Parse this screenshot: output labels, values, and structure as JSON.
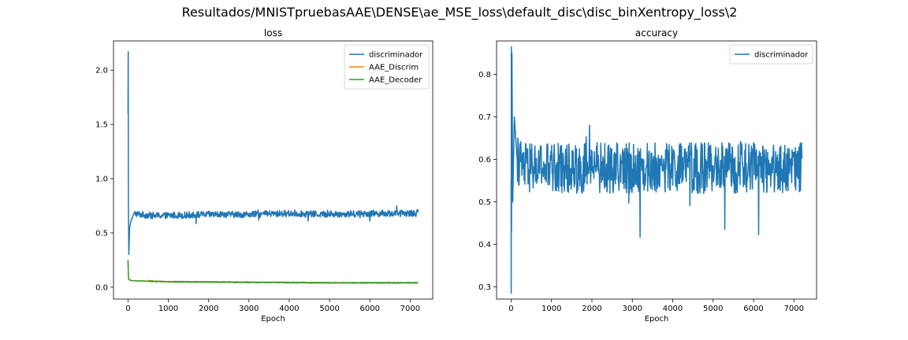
{
  "figure": {
    "suptitle": "Resultados/MNISTpruebasAAE\\DENSE\\ae_MSE_loss\\default_disc\\disc_binXentropy_loss\\2"
  },
  "chart_data": [
    {
      "type": "line",
      "title": "loss",
      "xlabel": "Epoch",
      "ylabel": "",
      "xlim": [
        -360,
        7560
      ],
      "ylim": [
        -0.11,
        2.27
      ],
      "xticks": [
        0,
        1000,
        2000,
        3000,
        4000,
        5000,
        6000,
        7000
      ],
      "xtick_labels": [
        "0",
        "1000",
        "2000",
        "3000",
        "4000",
        "5000",
        "6000",
        "7000"
      ],
      "yticks": [
        0.0,
        0.5,
        1.0,
        1.5,
        2.0
      ],
      "ytick_labels": [
        "0.0",
        "0.5",
        "1.0",
        "1.5",
        "2.0"
      ],
      "grid": false,
      "legend_position": "top-right",
      "series": [
        {
          "name": "discriminador",
          "color": "#1f77b4",
          "x": [
            0,
            5,
            10,
            20,
            40,
            80,
            150,
            300,
            600,
            1000,
            2000,
            3000,
            4000,
            5000,
            6000,
            7200
          ],
          "y": [
            1.6,
            2.17,
            0.75,
            0.3,
            0.55,
            0.62,
            0.68,
            0.67,
            0.66,
            0.66,
            0.67,
            0.67,
            0.68,
            0.67,
            0.68,
            0.68
          ],
          "noise_amplitude": 0.03
        },
        {
          "name": "AAE_Discrim",
          "color": "#ff7f0e",
          "x": [
            0,
            10,
            20,
            50,
            100,
            500,
            1000,
            3000,
            5000,
            7200
          ],
          "y": [
            0.25,
            0.1,
            0.07,
            0.065,
            0.06,
            0.055,
            0.05,
            0.045,
            0.04,
            0.04
          ],
          "noise_amplitude": 0.004
        },
        {
          "name": "AAE_Decoder",
          "color": "#2ca02c",
          "x": [
            0,
            10,
            20,
            50,
            100,
            500,
            1000,
            3000,
            5000,
            7200
          ],
          "y": [
            0.25,
            0.1,
            0.07,
            0.065,
            0.06,
            0.055,
            0.05,
            0.045,
            0.04,
            0.04
          ],
          "noise_amplitude": 0.004
        }
      ]
    },
    {
      "type": "line",
      "title": "accuracy",
      "xlabel": "Epoch",
      "ylabel": "",
      "xlim": [
        -360,
        7560
      ],
      "ylim": [
        0.271,
        0.879
      ],
      "xticks": [
        0,
        1000,
        2000,
        3000,
        4000,
        5000,
        6000,
        7000
      ],
      "xtick_labels": [
        "0",
        "1000",
        "2000",
        "3000",
        "4000",
        "5000",
        "6000",
        "7000"
      ],
      "yticks": [
        0.3,
        0.4,
        0.5,
        0.6,
        0.7,
        0.8
      ],
      "ytick_labels": [
        "0.3",
        "0.4",
        "0.5",
        "0.6",
        "0.7",
        "0.8"
      ],
      "grid": false,
      "legend_position": "top-right",
      "series": [
        {
          "name": "discriminador",
          "color": "#1f77b4",
          "x": [
            0,
            3,
            6,
            10,
            20,
            40,
            80,
            150,
            300,
            1000,
            2000,
            3000,
            4000,
            5000,
            6000,
            7200
          ],
          "y": [
            0.55,
            0.285,
            0.865,
            0.43,
            0.85,
            0.5,
            0.7,
            0.6,
            0.58,
            0.58,
            0.58,
            0.58,
            0.58,
            0.58,
            0.58,
            0.58
          ],
          "noise_amplitude": 0.06
        }
      ]
    }
  ]
}
